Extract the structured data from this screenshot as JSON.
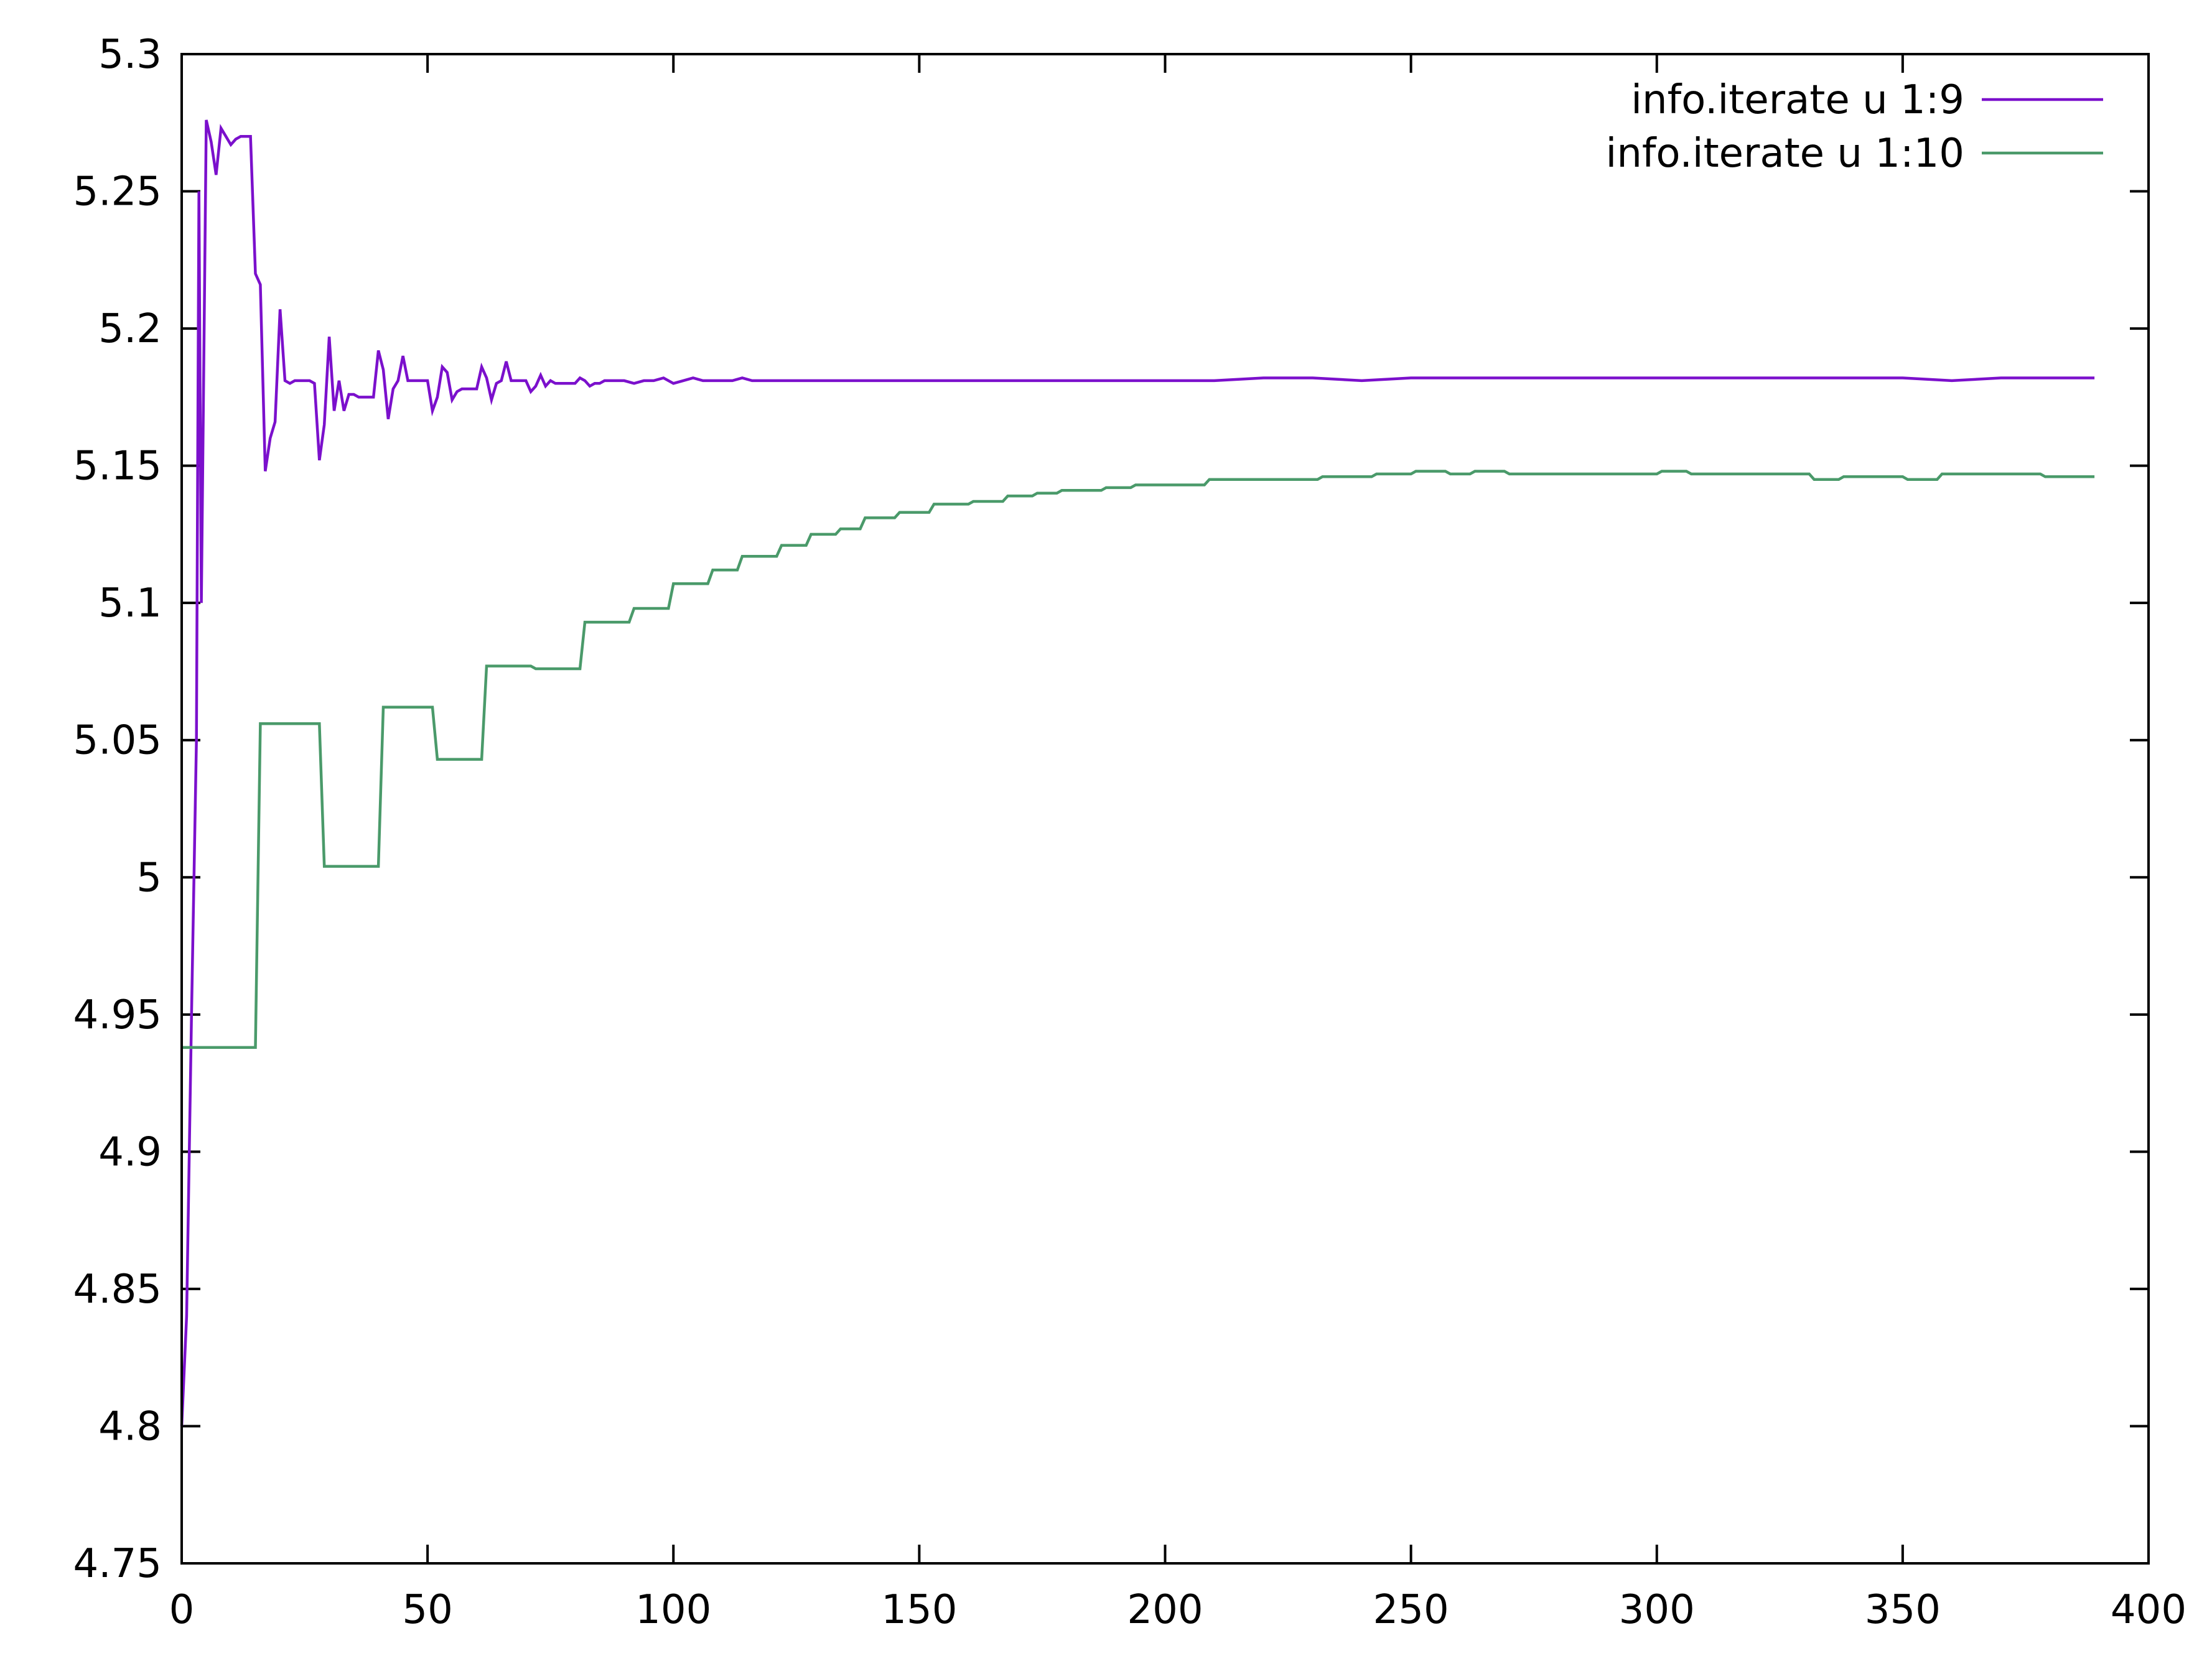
{
  "chart_data": {
    "type": "line",
    "title": "",
    "xlabel": "",
    "ylabel": "",
    "xlim": [
      0,
      400
    ],
    "ylim": [
      4.75,
      5.3
    ],
    "x_ticks": [
      0,
      50,
      100,
      150,
      200,
      250,
      300,
      350,
      400
    ],
    "x_tick_labels": [
      "0",
      "50",
      "100",
      "150",
      "200",
      "250",
      "300",
      "350",
      "400"
    ],
    "y_ticks": [
      4.75,
      4.8,
      4.85,
      4.9,
      4.95,
      5.0,
      5.05,
      5.1,
      5.15,
      5.2,
      5.25,
      5.3
    ],
    "y_tick_labels": [
      "4.75",
      "4.8",
      "4.85",
      "4.9",
      "4.95",
      "5",
      "5.05",
      "5.1",
      "5.15",
      "5.2",
      "5.25",
      "5.3"
    ],
    "grid": false,
    "legend_position": "top-right",
    "series": [
      {
        "name": "info.iterate u 1:9",
        "color": "#7b10cc",
        "x": [
          0,
          1,
          2,
          3,
          3.5,
          4,
          5,
          6,
          7,
          8,
          9,
          10,
          11,
          12,
          13,
          14,
          15,
          16,
          17,
          18,
          19,
          20,
          21,
          22,
          23,
          24,
          25,
          26,
          27,
          28,
          29,
          30,
          31,
          32,
          33,
          34,
          35,
          36,
          37,
          38,
          39,
          40,
          41,
          42,
          43,
          44,
          45,
          46,
          47,
          48,
          49,
          50,
          51,
          52,
          53,
          54,
          55,
          56,
          57,
          58,
          59,
          60,
          61,
          62,
          63,
          64,
          65,
          66,
          67,
          68,
          69,
          70,
          71,
          72,
          73,
          74,
          75,
          76,
          77,
          78,
          79,
          80,
          81,
          82,
          83,
          84,
          85,
          86,
          87,
          88,
          89,
          90,
          92,
          94,
          96,
          98,
          100,
          102,
          104,
          106,
          108,
          110,
          112,
          114,
          116,
          118,
          120,
          130,
          140,
          150,
          160,
          170,
          180,
          190,
          200,
          210,
          220,
          230,
          240,
          250,
          260,
          270,
          280,
          290,
          300,
          310,
          320,
          330,
          340,
          350,
          360,
          370,
          380,
          389
        ],
        "y": [
          4.8,
          4.84,
          4.95,
          5.05,
          5.25,
          5.1,
          5.276,
          5.268,
          5.256,
          5.273,
          5.27,
          5.267,
          5.269,
          5.27,
          5.27,
          5.27,
          5.22,
          5.216,
          5.148,
          5.16,
          5.166,
          5.207,
          5.181,
          5.18,
          5.181,
          5.181,
          5.181,
          5.181,
          5.18,
          5.152,
          5.165,
          5.197,
          5.17,
          5.181,
          5.17,
          5.176,
          5.176,
          5.175,
          5.175,
          5.175,
          5.175,
          5.192,
          5.185,
          5.167,
          5.178,
          5.181,
          5.19,
          5.181,
          5.181,
          5.181,
          5.181,
          5.181,
          5.17,
          5.175,
          5.186,
          5.184,
          5.174,
          5.177,
          5.178,
          5.178,
          5.178,
          5.178,
          5.186,
          5.182,
          5.174,
          5.18,
          5.181,
          5.188,
          5.181,
          5.181,
          5.181,
          5.181,
          5.177,
          5.179,
          5.183,
          5.179,
          5.181,
          5.18,
          5.18,
          5.18,
          5.18,
          5.18,
          5.182,
          5.181,
          5.179,
          5.18,
          5.18,
          5.181,
          5.181,
          5.181,
          5.181,
          5.181,
          5.18,
          5.181,
          5.181,
          5.182,
          5.18,
          5.181,
          5.182,
          5.181,
          5.181,
          5.181,
          5.181,
          5.182,
          5.181,
          5.181,
          5.181,
          5.181,
          5.181,
          5.181,
          5.181,
          5.181,
          5.181,
          5.181,
          5.181,
          5.181,
          5.182,
          5.182,
          5.181,
          5.182,
          5.182,
          5.182,
          5.182,
          5.182,
          5.182,
          5.182,
          5.182,
          5.182,
          5.182,
          5.182,
          5.181,
          5.182,
          5.182,
          5.182
        ]
      },
      {
        "name": "info.iterate u 1:10",
        "color": "#4a9a6a",
        "step": true,
        "x": [
          0,
          15,
          16,
          28,
          29,
          40,
          41,
          51,
          52,
          61,
          62,
          71,
          72,
          81,
          82,
          91,
          92,
          99,
          100,
          107,
          108,
          113,
          114,
          121,
          122,
          127,
          128,
          133,
          134,
          138,
          139,
          145,
          146,
          152,
          153,
          160,
          161,
          167,
          168,
          173,
          174,
          178,
          179,
          187,
          188,
          193,
          194,
          208,
          209,
          215,
          216,
          225,
          226,
          231,
          232,
          236,
          237,
          242,
          243,
          246,
          247,
          250,
          251,
          257,
          258,
          262,
          263,
          269,
          270,
          280,
          281,
          300,
          301,
          306,
          307,
          316,
          317,
          325,
          326,
          331,
          332,
          337,
          338,
          343,
          344,
          350,
          351,
          357,
          358,
          378,
          379,
          384,
          385,
          389
        ],
        "y": [
          4.938,
          4.938,
          5.056,
          5.056,
          5.004,
          5.004,
          5.062,
          5.062,
          5.043,
          5.043,
          5.077,
          5.077,
          5.076,
          5.076,
          5.093,
          5.093,
          5.098,
          5.098,
          5.107,
          5.107,
          5.112,
          5.112,
          5.117,
          5.117,
          5.121,
          5.121,
          5.125,
          5.125,
          5.127,
          5.127,
          5.131,
          5.131,
          5.133,
          5.133,
          5.136,
          5.136,
          5.137,
          5.137,
          5.139,
          5.139,
          5.14,
          5.14,
          5.141,
          5.141,
          5.142,
          5.142,
          5.143,
          5.143,
          5.145,
          5.145,
          5.145,
          5.145,
          5.145,
          5.145,
          5.146,
          5.146,
          5.146,
          5.146,
          5.147,
          5.147,
          5.147,
          5.147,
          5.148,
          5.148,
          5.147,
          5.147,
          5.148,
          5.148,
          5.147,
          5.147,
          5.147,
          5.147,
          5.148,
          5.148,
          5.147,
          5.147,
          5.147,
          5.147,
          5.147,
          5.147,
          5.145,
          5.145,
          5.146,
          5.146,
          5.146,
          5.146,
          5.145,
          5.145,
          5.147,
          5.147,
          5.146,
          5.146,
          5.146,
          5.146
        ]
      }
    ]
  }
}
